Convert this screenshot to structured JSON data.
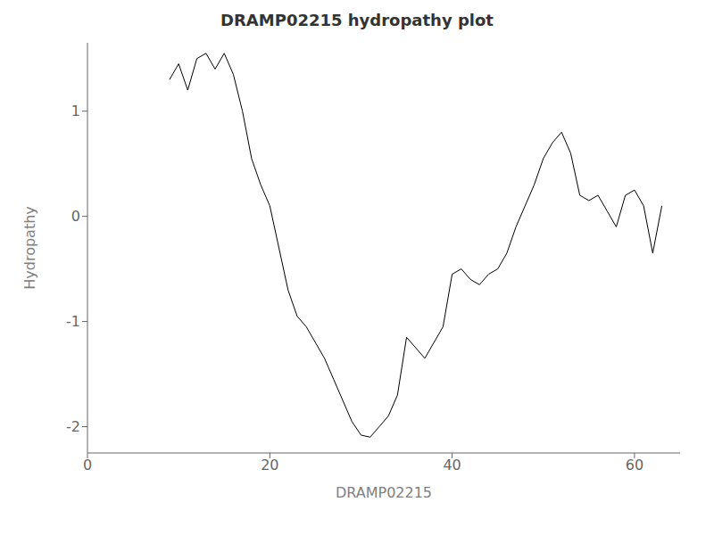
{
  "chart_data": {
    "type": "line",
    "title": "DRAMP02215 hydropathy plot",
    "xlabel": "DRAMP02215",
    "ylabel": "Hydropathy",
    "x": [
      9,
      10,
      11,
      12,
      13,
      14,
      15,
      16,
      17,
      18,
      19,
      20,
      21,
      22,
      23,
      24,
      25,
      26,
      27,
      28,
      29,
      30,
      31,
      32,
      33,
      34,
      35,
      36,
      37,
      38,
      39,
      40,
      41,
      42,
      43,
      44,
      45,
      46,
      47,
      48,
      49,
      50,
      51,
      52,
      53,
      54,
      55,
      56,
      57,
      58,
      59,
      60,
      61,
      62,
      63
    ],
    "values": [
      1.3,
      1.45,
      1.2,
      1.5,
      1.55,
      1.4,
      1.55,
      1.35,
      1.0,
      0.55,
      0.3,
      0.1,
      -0.3,
      -0.7,
      -0.95,
      -1.05,
      -1.2,
      -1.35,
      -1.55,
      -1.75,
      -1.95,
      -2.08,
      -2.1,
      -2.0,
      -1.9,
      -1.7,
      -1.15,
      -1.25,
      -1.35,
      -1.2,
      -1.05,
      -0.55,
      -0.5,
      -0.6,
      -0.65,
      -0.55,
      -0.5,
      -0.35,
      -0.1,
      0.1,
      0.3,
      0.55,
      0.7,
      0.8,
      0.6,
      0.2,
      0.15,
      0.2,
      0.05,
      -0.1,
      0.2,
      0.25,
      0.1,
      -0.35,
      0.1
    ],
    "color": "#000000",
    "xlim": [
      0,
      65
    ],
    "ylim": [
      -2.25,
      1.65
    ],
    "xticks": [
      0,
      20,
      40,
      60
    ],
    "yticks": [
      -2,
      -1,
      0,
      1
    ],
    "grid": false
  }
}
